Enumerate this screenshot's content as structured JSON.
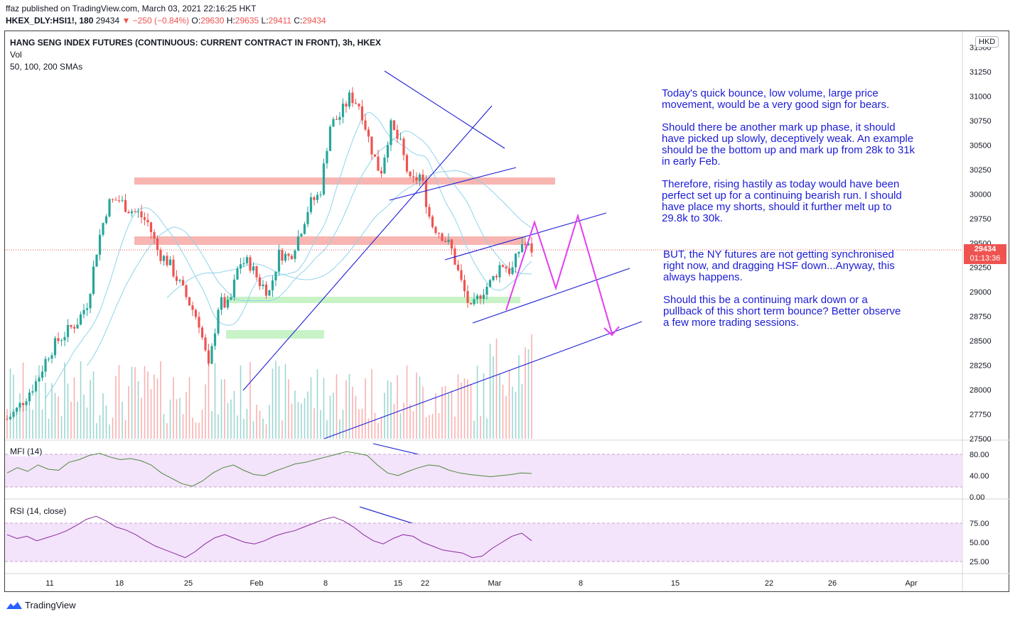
{
  "header": {
    "published": "ffaz published on TradingView.com, March 03, 2021 22:16:25 HKT",
    "symbol": "HKEX_DLY:HSI1!, 180",
    "last": "29434",
    "change": "▼ −250 (−0.84%)",
    "o_label": "O:",
    "o_val": "29630",
    "h_label": "H:",
    "h_val": "29635",
    "l_label": "L:",
    "l_val": "29411",
    "c_label": "C:",
    "c_val": "29434"
  },
  "chart": {
    "title": "HANG SENG INDEX FUTURES (CONTINUOUS: CURRENT CONTRACT IN FRONT), 3h, HKEX",
    "legend_vol": "Vol",
    "legend_sma": "50, 100, 200 SMAs",
    "currency": "HKD",
    "price_tag": "29434",
    "countdown": "01:13:36"
  },
  "notes": {
    "p1": "Today's quick bounce, low volume, large price movement, would be a very good sign for bears.",
    "p2": "Should there be another mark up phase, it should have picked up slowly, deceptively weak. An example should be the bottom up and mark up from 28k to 31k in early Feb.",
    "p3": "Therefore, rising hastily as today would have been perfect set up for a continuing bearish run. I should have place my shorts, should it further melt up to 29.8k to 30k.",
    "p4": "BUT, the NY futures are not getting synchronised right now, and dragging HSF down...Anyway, this always happens.",
    "p5": "Should this be a continuing mark down or a pullback of this short term bounce? Better observe a few more trading sessions."
  },
  "footer": {
    "brand": "TradingView"
  },
  "colors": {
    "up": "#26a69a",
    "down": "#ef5350",
    "annot": "#1c1cd6",
    "projection": "#e33df0",
    "zone_red": "#f7a8a3",
    "zone_green": "#b9f0b9",
    "sma": "#8fd3ec"
  },
  "chart_data": [
    {
      "type": "candlestick",
      "title": "HANG SENG INDEX FUTURES (CONTINUOUS: CURRENT CONTRACT IN FRONT), 3h, HKEX",
      "ylim": [
        27500,
        31350
      ],
      "y_ticks": [
        "27500",
        "27750",
        "28000",
        "28250",
        "28500",
        "28750",
        "29000",
        "29250",
        "29500",
        "29750",
        "30000",
        "30250",
        "30500",
        "30750",
        "31000",
        "31250",
        "31500"
      ],
      "x_ticks": [
        "11",
        "18",
        "25",
        "Feb",
        "8",
        "15",
        "22",
        "Mar",
        "8",
        "15",
        "22",
        "26",
        "Apr"
      ],
      "close_path": [
        27700,
        27800,
        27950,
        28100,
        28350,
        28500,
        28600,
        28700,
        28900,
        29500,
        29900,
        29950,
        29850,
        29800,
        29700,
        29400,
        29300,
        29100,
        28900,
        28700,
        28200,
        28900,
        28850,
        29300,
        29300,
        29100,
        29000,
        29400,
        29350,
        29600,
        29900,
        30000,
        30700,
        30800,
        31000,
        30900,
        30500,
        30200,
        30700,
        30500,
        30100,
        30200,
        29700,
        29600,
        29450,
        29100,
        28800,
        29000,
        29100,
        29300,
        29200,
        29500,
        29434
      ],
      "resistance_zones": [
        [
          30080,
          30150
        ],
        [
          29460,
          29560
        ]
      ],
      "support_zones": [
        [
          28850,
          28910
        ],
        [
          28570,
          28650
        ]
      ],
      "last_price": 29434
    },
    {
      "type": "line",
      "title": "MFI (14)",
      "ylim": [
        0,
        100
      ],
      "y_ticks": [
        "0.00",
        "40.00",
        "80.00"
      ],
      "band": [
        20,
        80
      ],
      "values": [
        45,
        55,
        48,
        60,
        52,
        50,
        65,
        70,
        78,
        82,
        75,
        70,
        72,
        68,
        60,
        45,
        35,
        25,
        20,
        30,
        45,
        55,
        60,
        50,
        42,
        40,
        48,
        55,
        62,
        65,
        70,
        75,
        80,
        85,
        82,
        78,
        60,
        45,
        40,
        48,
        55,
        60,
        58,
        50,
        45,
        42,
        40,
        38,
        40,
        42,
        45,
        44
      ]
    },
    {
      "type": "line",
      "title": "RSI (14, close)",
      "ylim": [
        20,
        90
      ],
      "y_ticks": [
        "25.00",
        "50.00",
        "75.00"
      ],
      "band": [
        30,
        70
      ],
      "values": [
        60,
        55,
        58,
        52,
        56,
        60,
        65,
        72,
        80,
        84,
        78,
        70,
        66,
        60,
        52,
        45,
        40,
        35,
        30,
        38,
        48,
        56,
        60,
        55,
        50,
        48,
        52,
        58,
        62,
        65,
        70,
        75,
        80,
        83,
        78,
        70,
        60,
        52,
        48,
        55,
        60,
        58,
        50,
        45,
        40,
        38,
        36,
        30,
        32,
        42,
        50,
        58,
        62,
        52
      ]
    }
  ]
}
